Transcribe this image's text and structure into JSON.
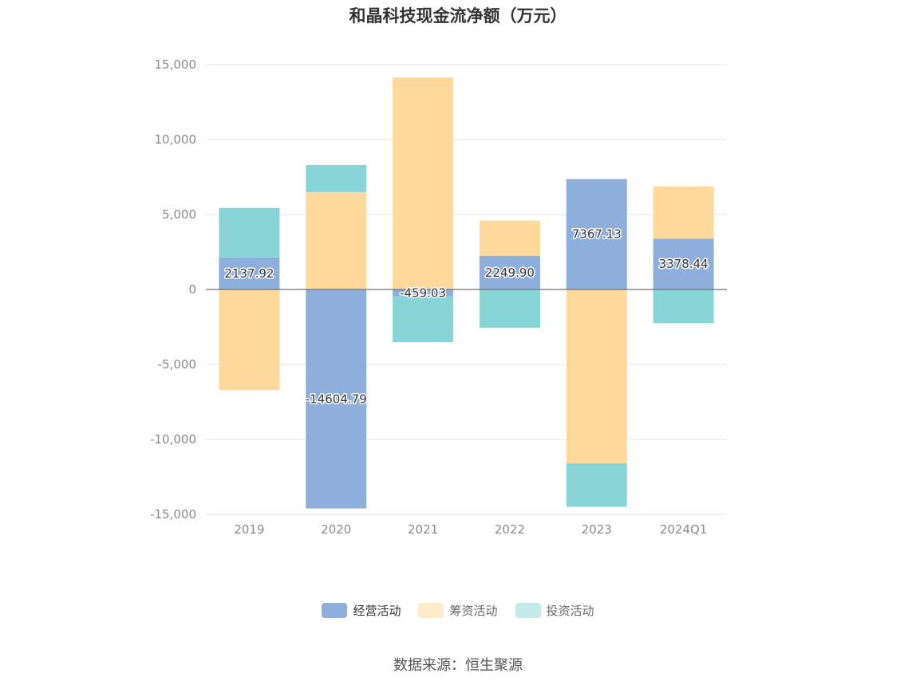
{
  "chart_data": {
    "type": "bar",
    "stacked": true,
    "title": "和晶科技现金流净额（万元）",
    "categories": [
      "2019",
      "2020",
      "2021",
      "2022",
      "2023",
      "2024Q1"
    ],
    "ylim": [
      -15000,
      15000
    ],
    "yticks": [
      15000,
      10000,
      5000,
      0,
      -5000,
      -10000,
      -15000
    ],
    "ytick_labels": [
      "15,000",
      "10,000",
      "5,000",
      "0",
      "-5,000",
      "-10,000",
      "-15,000"
    ],
    "grid": true,
    "legend_position": "bottom",
    "series": [
      {
        "name": "经营活动",
        "color": "#8eaedb",
        "swatch_color": "#8eaedb",
        "values": [
          2137.92,
          -14604.79,
          -459.03,
          2249.9,
          7367.13,
          3378.44
        ],
        "labels": [
          "2137.92",
          "-14604.79",
          "-459.03",
          "2249.90",
          "7367.13",
          "3378.44"
        ]
      },
      {
        "name": "筹资活动",
        "color": "#fed99b",
        "swatch_color": "#feebc9",
        "values": [
          -6700,
          6500,
          14150,
          2350,
          -11600,
          3500
        ]
      },
      {
        "name": "投资活动",
        "color": "#88d5d8",
        "swatch_color": "#c3e9eb",
        "values": [
          3300,
          1800,
          -3050,
          -2550,
          -2900,
          -2250
        ]
      }
    ]
  },
  "source": "数据来源：恒生聚源"
}
